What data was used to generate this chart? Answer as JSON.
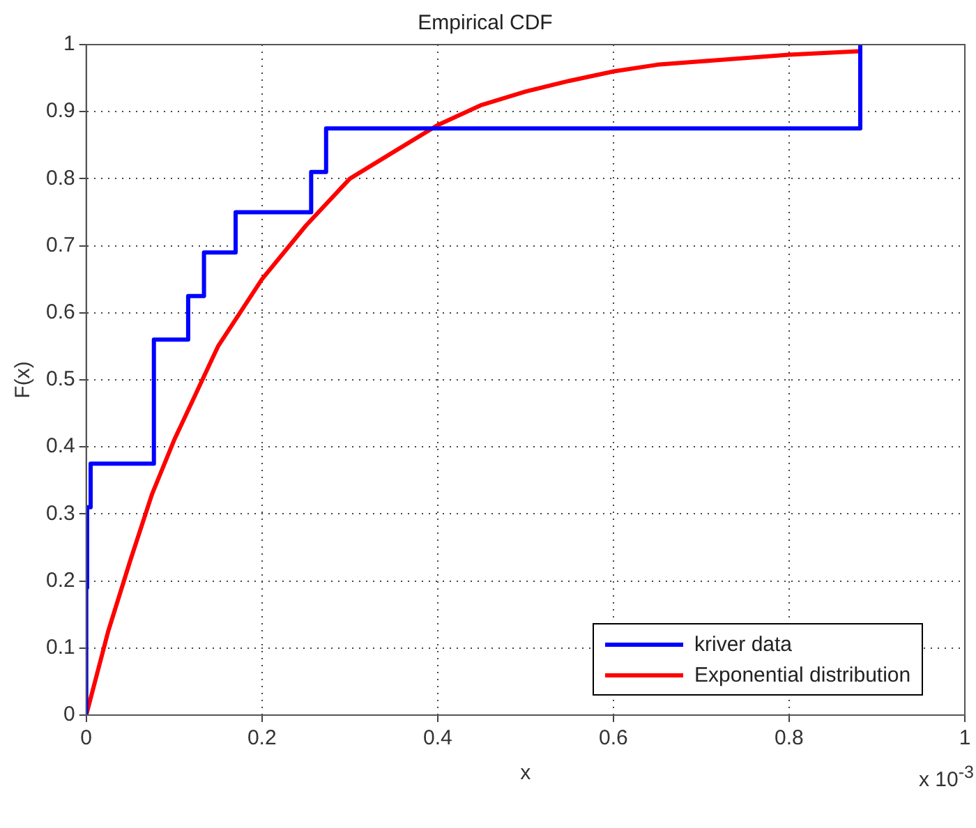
{
  "chart_data": {
    "type": "step",
    "title": "Empirical CDF",
    "xlabel": "x",
    "ylabel": "F(x)",
    "xlim": [
      0,
      1
    ],
    "xticks": [
      0,
      0.2,
      0.4,
      0.6,
      0.8,
      1
    ],
    "ylim": [
      0,
      1
    ],
    "yticks": [
      0,
      0.1,
      0.2,
      0.3,
      0.4,
      0.5,
      0.6,
      0.7,
      0.8,
      0.9,
      1
    ],
    "grid": true,
    "legend": "bottom right",
    "line_style": "solid",
    "marker": "none",
    "annotations": [
      "x 10$^{-3}$"
    ],
    "series": [
      {
        "name": "kriver data",
        "color": "#0000ff",
        "x": [
          0,
          0,
          0.001,
          0.005,
          0.077,
          0.116,
          0.134,
          0.17,
          0.256,
          0.273,
          0.881
        ],
        "values": [
          0,
          0.19,
          0.31,
          0.375,
          0.56,
          0.625,
          0.69,
          0.75,
          0.81,
          0.875,
          1
        ]
      },
      {
        "name": "Exponential distribution",
        "type": "line",
        "color": "#ff0000",
        "x": [
          0,
          0.025,
          0.05,
          0.075,
          0.1,
          0.15,
          0.2,
          0.25,
          0.3,
          0.35,
          0.4,
          0.45,
          0.5,
          0.55,
          0.6,
          0.65,
          0.7,
          0.75,
          0.8,
          0.88
        ],
        "values": [
          0,
          0.125,
          0.23,
          0.33,
          0.41,
          0.55,
          0.65,
          0.73,
          0.8,
          0.84,
          0.88,
          0.91,
          0.93,
          0.946,
          0.96,
          0.97,
          0.975,
          0.98,
          0.985,
          0.99
        ]
      }
    ]
  }
}
